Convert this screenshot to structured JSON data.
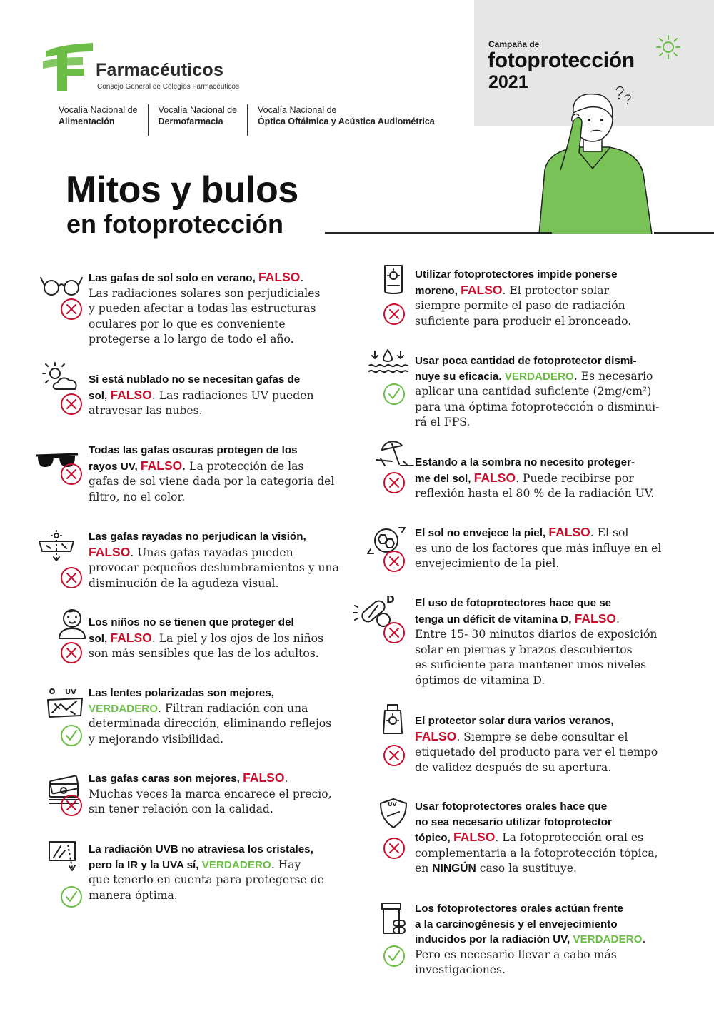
{
  "header": {
    "org_name": "Farmacéuticos",
    "org_subtitle": "Consejo General de Colegios Farmacéuticos",
    "vocalias": [
      {
        "line1": "Vocalía Nacional de",
        "line2": "Alimentación"
      },
      {
        "line1": "Vocalía Nacional de",
        "line2": "Dermofarmacia"
      },
      {
        "line1": "Vocalía Nacional de",
        "line2": "Óptica Oftálmica y Acústica Audiométrica"
      }
    ],
    "campaign_label": "Campaña de",
    "campaign_title": "fotoprotección",
    "campaign_year": "2021"
  },
  "title": {
    "line1": "Mitos y bulos",
    "line2": "en fotoprotección"
  },
  "colors": {
    "false": "#c8102e",
    "true": "#6cbd45",
    "campaign_bg": "#e6e6e6"
  },
  "verdicts": {
    "false": "FALSO",
    "true": "VERDADERO"
  },
  "left_items": [
    {
      "icon": "glasses-icon",
      "verdict": "false",
      "lines": [
        {
          "head": "Las gafas de sol solo en verano, ",
          "tag": "FALSO",
          "tail": "."
        },
        {
          "body": "Las radiaciones solares son perjudiciales"
        },
        {
          "body": "y pueden afectar a todas las estructuras"
        },
        {
          "body": "oculares por lo que es conveniente"
        },
        {
          "body": "protegerse a lo largo de todo el año."
        }
      ]
    },
    {
      "icon": "cloudy-sun-icon",
      "verdict": "false",
      "lines": [
        {
          "head": "Si está nublado no se necesitan gafas de"
        },
        {
          "head": "sol, ",
          "tag": "FALSO",
          "tail": ". Las radiaciones UV pueden"
        },
        {
          "body": "atravesar las nubes."
        }
      ]
    },
    {
      "icon": "sunglasses-icon",
      "verdict": "false",
      "lines": [
        {
          "head": "Todas las gafas oscuras protegen de los"
        },
        {
          "head": "rayos UV, ",
          "tag": "FALSO",
          "tail": ". La protección de las"
        },
        {
          "body": "gafas de sol viene dada por la categoría del"
        },
        {
          "body": "filtro, no el color."
        }
      ]
    },
    {
      "icon": "scratched-lens-icon",
      "verdict": "false",
      "lines": [
        {
          "head": "Las gafas rayadas no perjudican la visión,"
        },
        {
          "tag": "FALSO",
          "tail": ". Unas gafas rayadas pueden"
        },
        {
          "body": "provocar pequeños deslumbramientos y una"
        },
        {
          "body": "disminución de la agudeza visual."
        }
      ]
    },
    {
      "icon": "child-icon",
      "verdict": "false",
      "lines": [
        {
          "head": "Los niños no se tienen que proteger del"
        },
        {
          "head": "sol, ",
          "tag": "FALSO",
          "tail": ". La piel y los ojos de los niños"
        },
        {
          "body": "son más sensibles que las de los adultos."
        }
      ]
    },
    {
      "icon": "polarized-lens-icon",
      "verdict": "true",
      "lines": [
        {
          "head": "Las lentes polarizadas son mejores,"
        },
        {
          "tag": "VERDADERO",
          "tail": ". Filtran radiación con una"
        },
        {
          "body": "determinada dirección, eliminando reflejos"
        },
        {
          "body": "y mejorando visibilidad."
        }
      ]
    },
    {
      "icon": "money-icon",
      "verdict": "false",
      "lines": [
        {
          "head": "Las gafas caras son mejores, ",
          "tag": "FALSO",
          "tail": "."
        },
        {
          "body": "Muchas veces la marca encarece el precio,"
        },
        {
          "body": "sin tener relación con la calidad."
        }
      ]
    },
    {
      "icon": "window-rays-icon",
      "verdict": "true",
      "lines": [
        {
          "head": "La radiación UVB no atraviesa los cristales,"
        },
        {
          "head": "pero la IR y la UVA sí, ",
          "tag": "VERDADERO",
          "tail": ". Hay"
        },
        {
          "body": "que tenerlo en cuenta para protegerse de"
        },
        {
          "body": "manera óptima."
        }
      ]
    }
  ],
  "right_items": [
    {
      "icon": "sunscreen-tube-icon",
      "verdict": "false",
      "lines": [
        {
          "head": "Utilizar fotoprotectores impide ponerse"
        },
        {
          "head": "moreno, ",
          "tag": "FALSO",
          "tail": ". El protector solar"
        },
        {
          "body": "siempre permite el paso de radiación"
        },
        {
          "body": "suficiente para producir el bronceado."
        }
      ]
    },
    {
      "icon": "drops-icon",
      "verdict": "true",
      "lines": [
        {
          "head": "Usar poca cantidad de fotoprotector dismi-"
        },
        {
          "head": "nuye su eficacia. ",
          "tag": "VERDADERO",
          "tail": ". Es necesario"
        },
        {
          "body": "aplicar una cantidad suficiente (2mg/cm²)"
        },
        {
          "body": "para una óptima fotoprotección o disminui-"
        },
        {
          "body": "rá el FPS."
        }
      ]
    },
    {
      "icon": "beach-umbrella-icon",
      "verdict": "false",
      "lines": [
        {
          "head": "Estando a la sombra no necesito proteger-"
        },
        {
          "head": "me del sol, ",
          "tag": "FALSO",
          "tail": ". Puede recibirse por"
        },
        {
          "body": "reflexión hasta el 80 % de la radiación UV."
        }
      ]
    },
    {
      "icon": "skin-aging-icon",
      "verdict": "false",
      "lines": [
        {
          "head": "El sol no envejece la piel, ",
          "tag": "FALSO",
          "tail": ". El sol"
        },
        {
          "body": "es uno de los factores que más influye en el"
        },
        {
          "body": "envejecimiento de la piel."
        }
      ]
    },
    {
      "icon": "vitamin-d-icon",
      "verdict": "false",
      "lines": [
        {
          "head": "El uso de fotoprotectores hace que se"
        },
        {
          "head": "tenga un déficit de vitamina D, ",
          "tag": "FALSO",
          "tail": "."
        },
        {
          "body": "Entre 15- 30 minutos diarios de exposición"
        },
        {
          "body": "solar en piernas y brazos descubiertos"
        },
        {
          "body": "es suficiente para mantener unos niveles"
        },
        {
          "body": "óptimos de vitamina D."
        }
      ]
    },
    {
      "icon": "sunscreen-bottle-icon",
      "verdict": "false",
      "lines": [
        {
          "head": "El protector solar dura varios veranos,"
        },
        {
          "tag": "FALSO",
          "tail": ". Siempre se debe consultar el"
        },
        {
          "body": "etiquetado del producto para ver el tiempo"
        },
        {
          "body": "de validez después de su apertura."
        }
      ]
    },
    {
      "icon": "uv-shield-icon",
      "verdict": "false",
      "lines": [
        {
          "head": "Usar fotoprotectores orales hace que"
        },
        {
          "head": "no sea necesario utilizar fotoprotector"
        },
        {
          "head": "tópico, ",
          "tag": "FALSO",
          "tail": ". La fotoprotección oral es"
        },
        {
          "body": "complementaria a la fotoprotección tópica,"
        },
        {
          "body": "en ",
          "strong": "NINGÚN",
          "tail2": " caso la sustituye."
        }
      ]
    },
    {
      "icon": "pill-bottle-icon",
      "verdict": "true",
      "lines": [
        {
          "head": "Los fotoprotectores orales actúan frente"
        },
        {
          "head": "a la carcinogénesis y el envejecimiento"
        },
        {
          "head": "inducidos por la radiación UV, ",
          "tag": "VERDADERO",
          "tail": "."
        },
        {
          "body": "Pero es necesario llevar a cabo más"
        },
        {
          "body": "investigaciones."
        }
      ]
    }
  ]
}
